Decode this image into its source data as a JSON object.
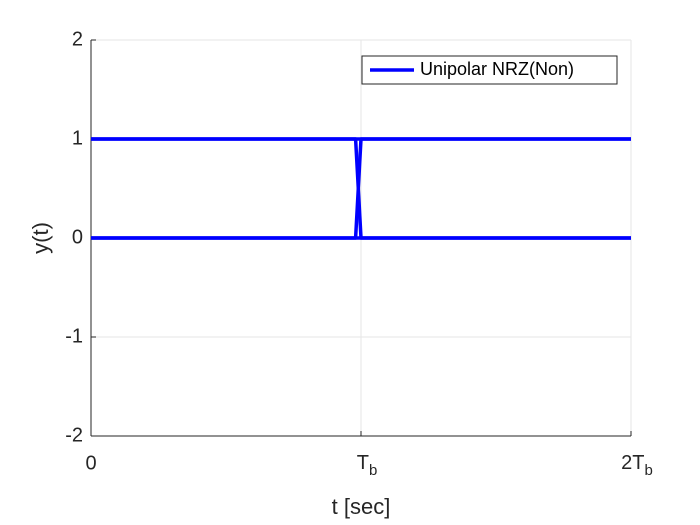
{
  "chart_data": {
    "type": "line",
    "xlabel": "t [sec]",
    "ylabel": "y(t)",
    "x": [
      0,
      0.98,
      1,
      2
    ],
    "series": [
      {
        "name": "Unipolar NRZ(Non)",
        "color": "#0000ff",
        "values": [
          1,
          1,
          1,
          1
        ]
      },
      {
        "color": "#0000ff",
        "values": [
          0,
          0,
          0,
          0
        ]
      },
      {
        "color": "#0000ff",
        "values": [
          1,
          1,
          0,
          0
        ]
      },
      {
        "color": "#0000ff",
        "values": [
          0,
          0,
          1,
          1
        ]
      }
    ],
    "xlim": [
      0,
      2
    ],
    "xticks": [
      0,
      {
        "value": 1,
        "label": "Tb"
      },
      {
        "value": 2,
        "label": "2Tb"
      }
    ],
    "ylim": [
      -2,
      2
    ],
    "yticks": [
      -2,
      -1,
      0,
      1,
      2
    ],
    "grid": true,
    "legend": "northeast"
  }
}
